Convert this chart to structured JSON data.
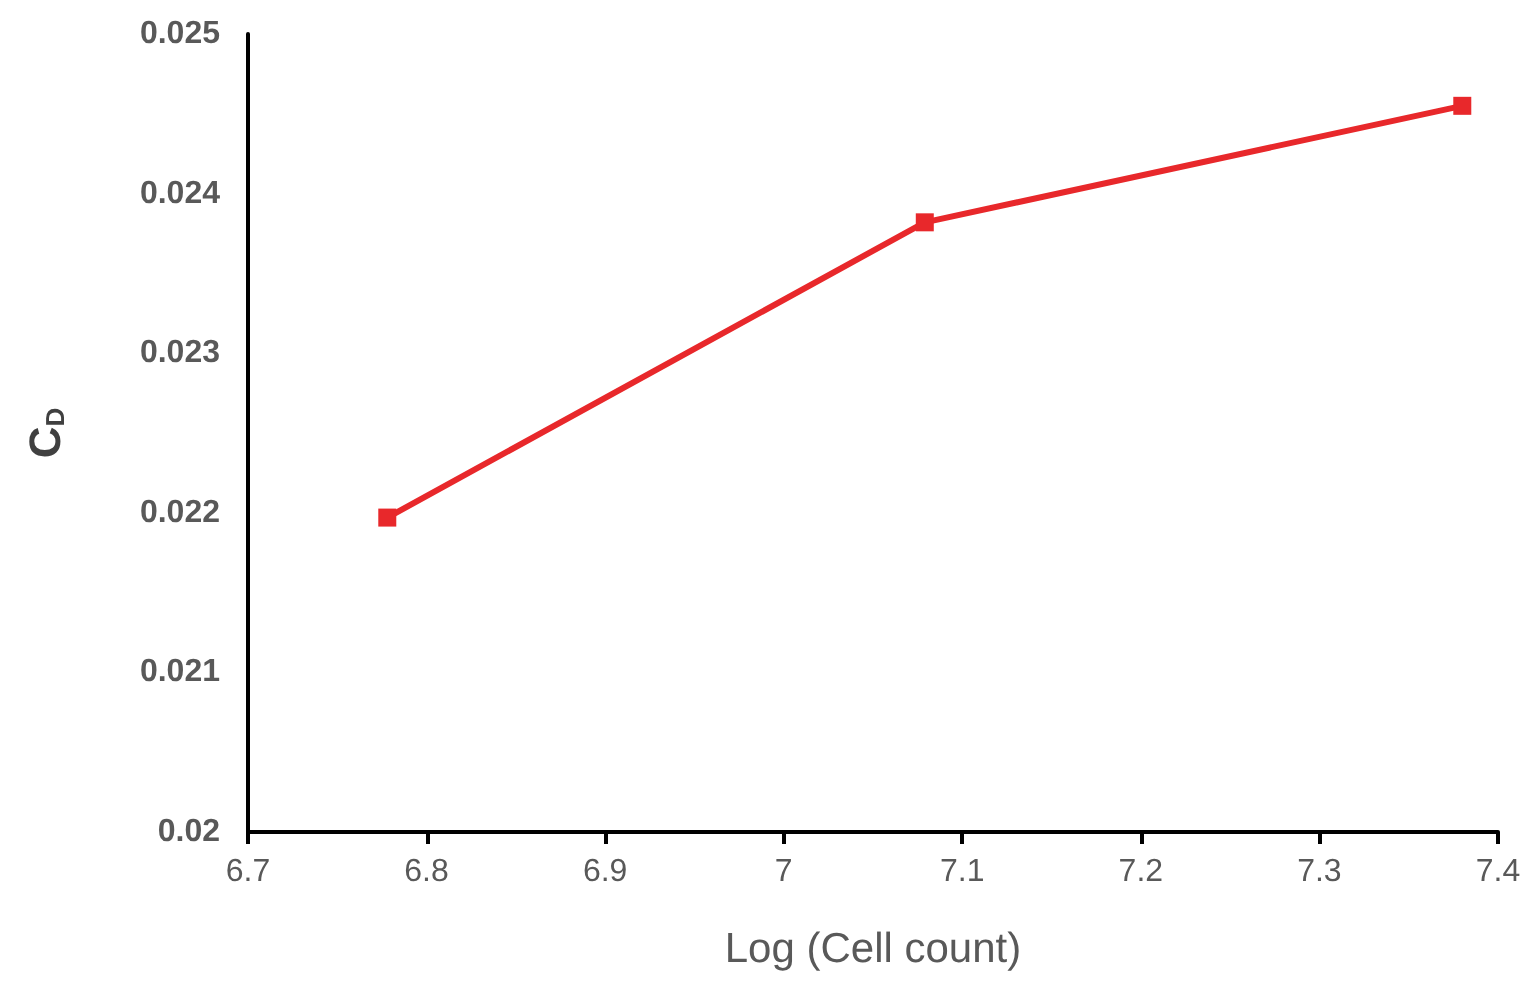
{
  "chart_data": {
    "type": "line",
    "xlabel": "Log (Cell count)",
    "ylabel": "C$_{D}$",
    "x": [
      6.778,
      7.079,
      7.38
    ],
    "series": [
      {
        "color": "#e8282b",
        "values": [
          0.02197,
          0.02382,
          0.02455
        ]
      }
    ],
    "xlim": [
      6.7,
      7.4
    ],
    "xticks": [
      6.7,
      6.8,
      6.9,
      7,
      7.1,
      7.2,
      7.3,
      7.4
    ],
    "ylim": [
      0.02,
      0.025
    ],
    "yticks": [
      0.02,
      0.021,
      0.022,
      0.023,
      0.024,
      0.025
    ],
    "grid": false,
    "marker": "square",
    "line_style": "solid"
  }
}
